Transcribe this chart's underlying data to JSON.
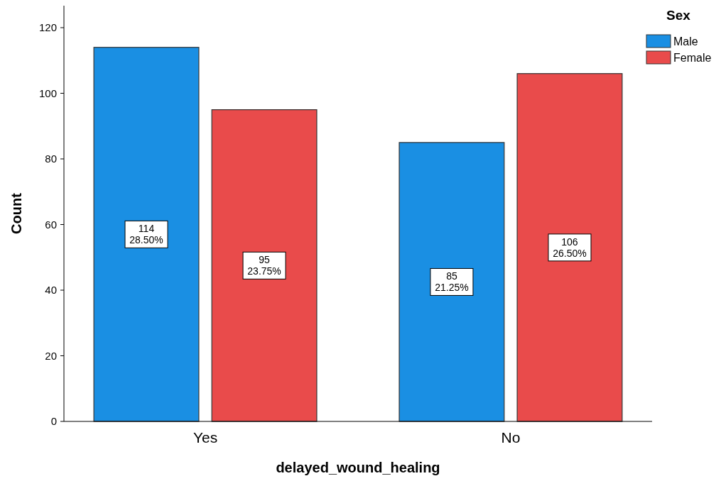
{
  "chart_data": {
    "type": "bar",
    "xlabel": "delayed_wound_healing",
    "ylabel": "Count",
    "legend_title": "Sex",
    "categories": [
      "Yes",
      "No"
    ],
    "series": [
      {
        "name": "Male",
        "color": "#1a8fe3",
        "values": [
          114,
          85
        ],
        "value_labels": [
          "114\n28.50%",
          "85\n21.25%"
        ]
      },
      {
        "name": "Female",
        "color": "#e94b4b",
        "values": [
          95,
          106
        ],
        "value_labels": [
          "95\n23.75%",
          "106\n26.50%"
        ]
      }
    ],
    "ylim": [
      0,
      126.7
    ],
    "yticks": [
      0,
      20,
      40,
      60,
      80,
      100,
      120
    ],
    "grid": false,
    "legend": "top right"
  }
}
